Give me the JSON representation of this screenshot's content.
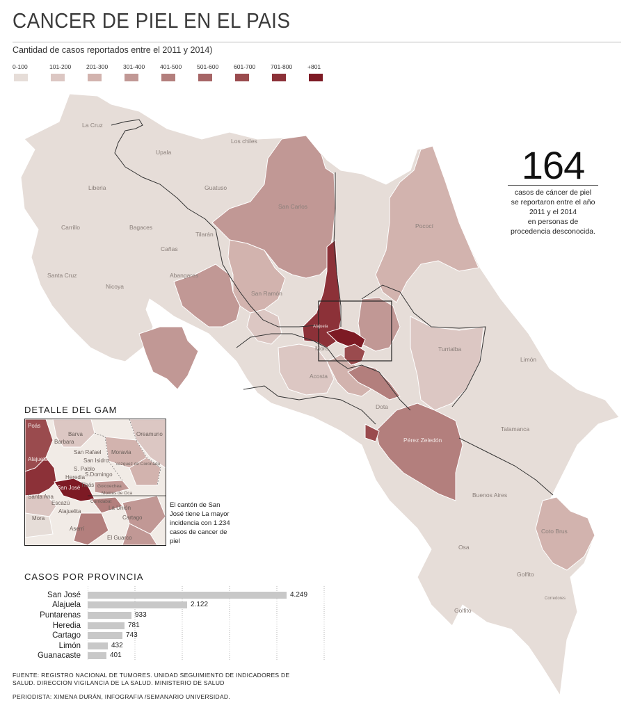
{
  "title": "CANCER DE PIEL EN EL PAIS",
  "subtitle": "Cantidad de casos reportados entre el 2011 y 2014)",
  "legend": [
    {
      "label": "0-100",
      "color": "#e6ddd8"
    },
    {
      "label": "101-200",
      "color": "#dcc7c3"
    },
    {
      "label": "201-300",
      "color": "#d2b3ae"
    },
    {
      "label": "301-400",
      "color": "#c19895"
    },
    {
      "label": "401-500",
      "color": "#b37f7d"
    },
    {
      "label": "501-600",
      "color": "#a66566"
    },
    {
      "label": "601-700",
      "color": "#9a4b4e"
    },
    {
      "label": "701-800",
      "color": "#8c3138"
    },
    {
      "label": "+801",
      "color": "#7d1a24"
    }
  ],
  "highlight": {
    "number": "164",
    "text_lines": [
      "casos de cáncer de piel",
      "se reportaron entre el año",
      "2011 y el 2014",
      "en personas de",
      "procedencia desconocida."
    ]
  },
  "map_labels": {
    "la_cruz": "La Cruz",
    "upala": "Upala",
    "los_chiles": "Los chiles",
    "liberia": "Liberia",
    "guatuso": "Guatuso",
    "san_carlos": "San Carlos",
    "pococi": "Pococí",
    "carrillo": "Carrillo",
    "bagaces": "Bagaces",
    "tilaran": "Tilarán",
    "canas": "Cañas",
    "santa_cruz": "Santa Cruz",
    "abangares": "Abangares",
    "nicoya": "Nicoya",
    "san_ramon": "San Ramón",
    "turrialba": "Turrialba",
    "limon": "Limón",
    "mora": "Mora",
    "acosta": "Acosta",
    "dota": "Dota",
    "talamanca": "Talamanca",
    "perez_zeledon": "Pérez Zeledón",
    "buenos_aires": "Buenos Aires",
    "coto_brus": "Coto Brus",
    "osa": "Osa",
    "golfito": "Golfito",
    "corredores": "Corredores",
    "alajuela": "Alajuela",
    "san_jose": "San José"
  },
  "gam": {
    "title": "DETALLE DEL GAM",
    "labels": [
      "Poás",
      "Barva",
      "Oreamuno",
      "Barbara",
      "San Rafael",
      "Moravia",
      "Alajuela",
      "San Isidro",
      "Vazquez de Coronado",
      "S. Pablo",
      "Heredia",
      "S.Domingo",
      "Tibás",
      "Goicoechea",
      "San José",
      "Montes de Oca",
      "Santa Ana",
      "Escazú",
      "Curridabat",
      "Alajuelita",
      "La Unión",
      "Mora",
      "Cartago",
      "Aserrí",
      "El Guarco"
    ],
    "note": "El cantón de San José tiene La mayor incidencia con 1.234 casos de cancer de piel"
  },
  "provinces": {
    "title": "CASOS POR PROVINCIA",
    "items": [
      {
        "name": "San José",
        "value": 4249,
        "label": "4.249"
      },
      {
        "name": "Alajuela",
        "value": 2122,
        "label": "2.122"
      },
      {
        "name": "Puntarenas",
        "value": 933,
        "label": "933"
      },
      {
        "name": "Heredia",
        "value": 781,
        "label": "781"
      },
      {
        "name": "Cartago",
        "value": 743,
        "label": "743"
      },
      {
        "name": "Limón",
        "value": 432,
        "label": "432"
      },
      {
        "name": "Guanacaste",
        "value": 401,
        "label": "401"
      }
    ]
  },
  "chart_data": {
    "type": "bar",
    "title": "CASOS POR PROVINCIA",
    "categories": [
      "San José",
      "Alajuela",
      "Puntarenas",
      "Heredia",
      "Cartago",
      "Limón",
      "Guanacaste"
    ],
    "values": [
      4249,
      2122,
      933,
      781,
      743,
      432,
      401
    ],
    "orientation": "horizontal",
    "xlim": [
      0,
      4500
    ]
  },
  "footer": {
    "source": "FUENTE: REGISTRO NACIONAL DE TUMORES. UNIDAD SEGUIMIENTO DE INDICADORES DE SALUD. DIRECCION VIGILANCIA DE LA SALUD. MINISTERIO DE SALUD",
    "credit": "PERIODISTA: XIMENA DURÁN, INFOGRAFIA /SEMANARIO UNIVERSIDAD."
  }
}
